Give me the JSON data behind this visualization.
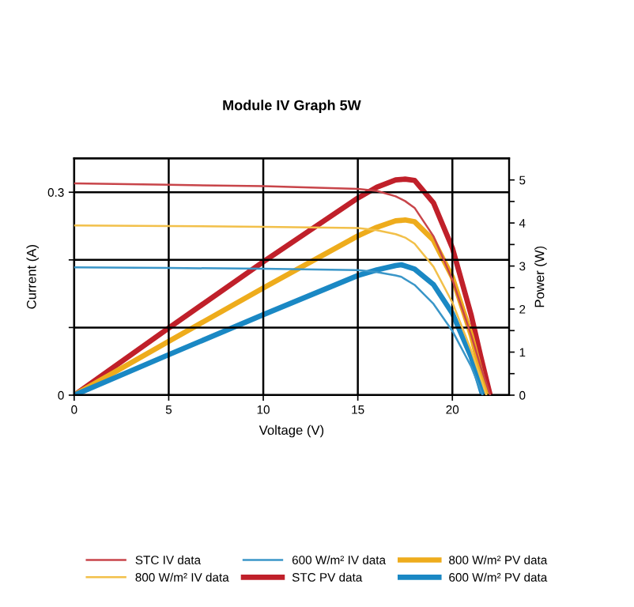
{
  "chart_data": {
    "type": "line",
    "title": "Module IV Graph 5W",
    "xlabel": "Voltage (V)",
    "ylabel": "Current (A)",
    "y2label": "Power (W)",
    "xlim": [
      0,
      23
    ],
    "xticks": [
      0,
      5,
      10,
      15,
      20
    ],
    "ylim": [
      0,
      0.35
    ],
    "yticks": [
      0,
      {
        "value": 0.1,
        "label": null
      },
      {
        "value": 0.2,
        "label": null
      },
      0.3
    ],
    "y2lim": [
      0,
      5.5
    ],
    "y2ticks": [
      0,
      {
        "value": 0.5,
        "label": null
      },
      1,
      {
        "value": 1.5,
        "label": null
      },
      2,
      {
        "value": 2.5,
        "label": null
      },
      3,
      {
        "value": 3.5,
        "label": null
      },
      4,
      {
        "value": 4.5,
        "label": null
      },
      5
    ],
    "grid": true,
    "legend": "bottom",
    "marker": "none",
    "line_style": "solid",
    "series": [
      {
        "name": "STC IV data",
        "color": "#c8454a",
        "x": [
          0,
          5,
          10,
          15,
          16,
          17,
          17.5,
          18,
          19,
          20,
          21,
          21.5,
          22
        ],
        "values": [
          0.313,
          0.311,
          0.309,
          0.305,
          0.302,
          0.294,
          0.287,
          0.277,
          0.235,
          0.171,
          0.088,
          0.042,
          0
        ]
      },
      {
        "name": "STC PV data",
        "color": "#c0202a",
        "axis": "y2",
        "x": [
          0,
          5,
          10,
          15,
          16,
          17,
          17.5,
          18,
          19,
          20,
          21,
          21.5,
          22
        ],
        "values": [
          0,
          1.56,
          3.1,
          4.58,
          4.83,
          5.0,
          5.02,
          4.99,
          4.47,
          3.42,
          1.85,
          0.9,
          0
        ]
      },
      {
        "name": "800 W/m² IV data",
        "color": "#f2c04a",
        "x": [
          0,
          5,
          10,
          15,
          16,
          17,
          17.5,
          18,
          19,
          20,
          21,
          21.5,
          21.8
        ],
        "values": [
          0.251,
          0.25,
          0.249,
          0.247,
          0.244,
          0.238,
          0.233,
          0.224,
          0.19,
          0.137,
          0.066,
          0.025,
          0
        ]
      },
      {
        "name": "800 W/m² PV data",
        "color": "#eeac1c",
        "axis": "y2",
        "x": [
          0,
          5,
          10,
          15,
          16,
          17,
          17.5,
          18,
          19,
          20,
          21,
          21.5,
          21.8
        ],
        "values": [
          0,
          1.25,
          2.49,
          3.7,
          3.9,
          4.05,
          4.07,
          4.03,
          3.6,
          2.74,
          1.39,
          0.54,
          0
        ]
      },
      {
        "name": "600 W/m² IV data",
        "color": "#3a96c8",
        "x": [
          0,
          5,
          10,
          15,
          16,
          17,
          17.3,
          18,
          19,
          20,
          21,
          21.6
        ],
        "values": [
          0.189,
          0.188,
          0.187,
          0.185,
          0.182,
          0.177,
          0.175,
          0.163,
          0.135,
          0.095,
          0.042,
          0
        ]
      },
      {
        "name": "600 W/m² PV data",
        "color": "#1a88c4",
        "axis": "y2",
        "x": [
          0,
          5,
          10,
          15,
          16,
          17,
          17.3,
          18,
          19,
          20,
          21,
          21.6
        ],
        "values": [
          0,
          0.94,
          1.87,
          2.78,
          2.91,
          3.01,
          3.03,
          2.93,
          2.57,
          1.9,
          0.88,
          0
        ]
      }
    ]
  }
}
